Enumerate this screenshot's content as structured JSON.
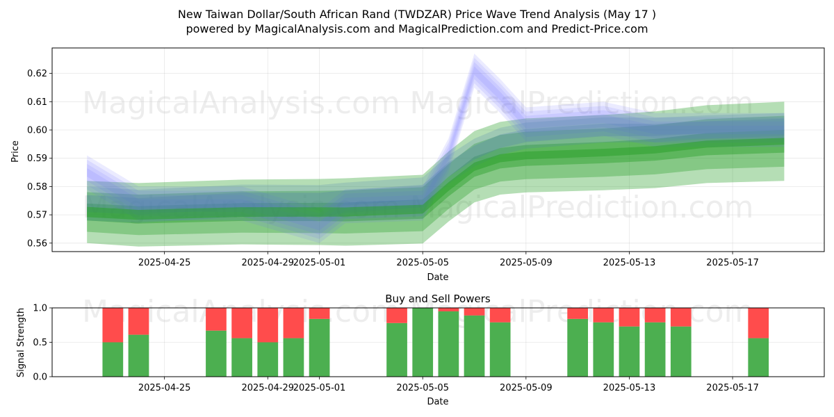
{
  "title_line1": "New Taiwan Dollar/South African Rand (TWDZAR) Price Wave Trend Analysis (May 17 )",
  "title_line2": "powered by MagicalAnalysis.com and MagicalPrediction.com and Predict-Price.com",
  "watermarks": [
    "MagicalAnalysis.com",
    "MagicalPrediction.com"
  ],
  "colors": {
    "blue_band": "#6666ff",
    "green_band": "#2ca02c",
    "buy": "#4caf50",
    "sell": "#ff4c4c"
  },
  "chart_data": [
    {
      "type": "area",
      "xlabel": "Date",
      "ylabel": "Price",
      "ylim": [
        0.557,
        0.629
      ],
      "xlim": [
        "2025-04-21",
        "2025-05-20"
      ],
      "x_ticks": [
        "2025-04-25",
        "2025-04-29",
        "2025-05-01",
        "2025-05-05",
        "2025-05-09",
        "2025-05-13",
        "2025-05-17"
      ],
      "y_ticks": [
        "0.56",
        "0.57",
        "0.58",
        "0.59",
        "0.60",
        "0.61",
        "0.62"
      ],
      "grid": true,
      "series": [
        {
          "x": [
            "2025-04-22",
            "2025-04-24",
            "2025-04-28",
            "2025-05-01",
            "2025-05-02",
            "2025-05-05",
            "2025-05-06",
            "2025-05-07",
            "2025-05-08",
            "2025-05-09",
            "2025-05-12",
            "2025-05-14",
            "2025-05-16",
            "2025-05-19"
          ],
          "y": [
            0.585,
            0.574,
            0.574,
            0.566,
            0.573,
            0.574,
            0.591,
            0.621,
            0.612,
            0.602,
            0.604,
            0.6,
            0.6,
            0.6
          ]
        },
        {
          "x": [
            "2025-04-22",
            "2025-04-24",
            "2025-04-28",
            "2025-05-01",
            "2025-05-02",
            "2025-05-05",
            "2025-05-06",
            "2025-05-07",
            "2025-05-08",
            "2025-05-09",
            "2025-05-12",
            "2025-05-14",
            "2025-05-16",
            "2025-05-19"
          ],
          "y": [
            0.574,
            0.573,
            0.575,
            0.575,
            0.576,
            0.578,
            0.586,
            0.592,
            0.596,
            0.598,
            0.6,
            0.6,
            0.601,
            0.602
          ]
        },
        {
          "x": [
            "2025-04-22",
            "2025-04-24",
            "2025-04-28",
            "2025-05-01",
            "2025-05-02",
            "2025-05-05",
            "2025-05-06",
            "2025-05-07",
            "2025-05-08",
            "2025-05-09",
            "2025-05-12",
            "2025-05-14",
            "2025-05-16",
            "2025-05-19"
          ],
          "y": [
            0.571,
            0.57,
            0.571,
            0.571,
            0.571,
            0.572,
            0.58,
            0.587,
            0.59,
            0.591,
            0.592,
            0.593,
            0.595,
            0.596
          ]
        }
      ]
    },
    {
      "type": "bar",
      "title": "Buy and Sell Powers",
      "xlabel": "Date",
      "ylabel": "Signal Strength",
      "ylim": [
        0,
        1.0
      ],
      "y_ticks": [
        "0.0",
        "0.5",
        "1.0"
      ],
      "x_ticks": [
        "2025-04-25",
        "2025-04-29",
        "2025-05-01",
        "2025-05-05",
        "2025-05-09",
        "2025-05-13",
        "2025-05-17"
      ],
      "x": [
        "2025-04-23",
        "2025-04-24",
        "2025-04-27",
        "2025-04-28",
        "2025-04-29",
        "2025-04-30",
        "2025-05-01",
        "2025-05-04",
        "2025-05-05",
        "2025-05-06",
        "2025-05-07",
        "2025-05-08",
        "2025-05-11",
        "2025-05-12",
        "2025-05-13",
        "2025-05-14",
        "2025-05-15",
        "2025-05-18"
      ],
      "series": [
        {
          "name": "Buy",
          "values": [
            0.5,
            0.61,
            0.67,
            0.56,
            0.5,
            0.56,
            0.84,
            0.78,
            1.0,
            0.95,
            0.89,
            0.79,
            0.84,
            0.79,
            0.73,
            0.79,
            0.73,
            0.56
          ]
        },
        {
          "name": "Sell",
          "values": [
            0.5,
            0.39,
            0.33,
            0.44,
            0.5,
            0.44,
            0.16,
            0.22,
            0.0,
            0.05,
            0.11,
            0.21,
            0.16,
            0.21,
            0.27,
            0.21,
            0.27,
            0.44
          ]
        }
      ]
    }
  ]
}
